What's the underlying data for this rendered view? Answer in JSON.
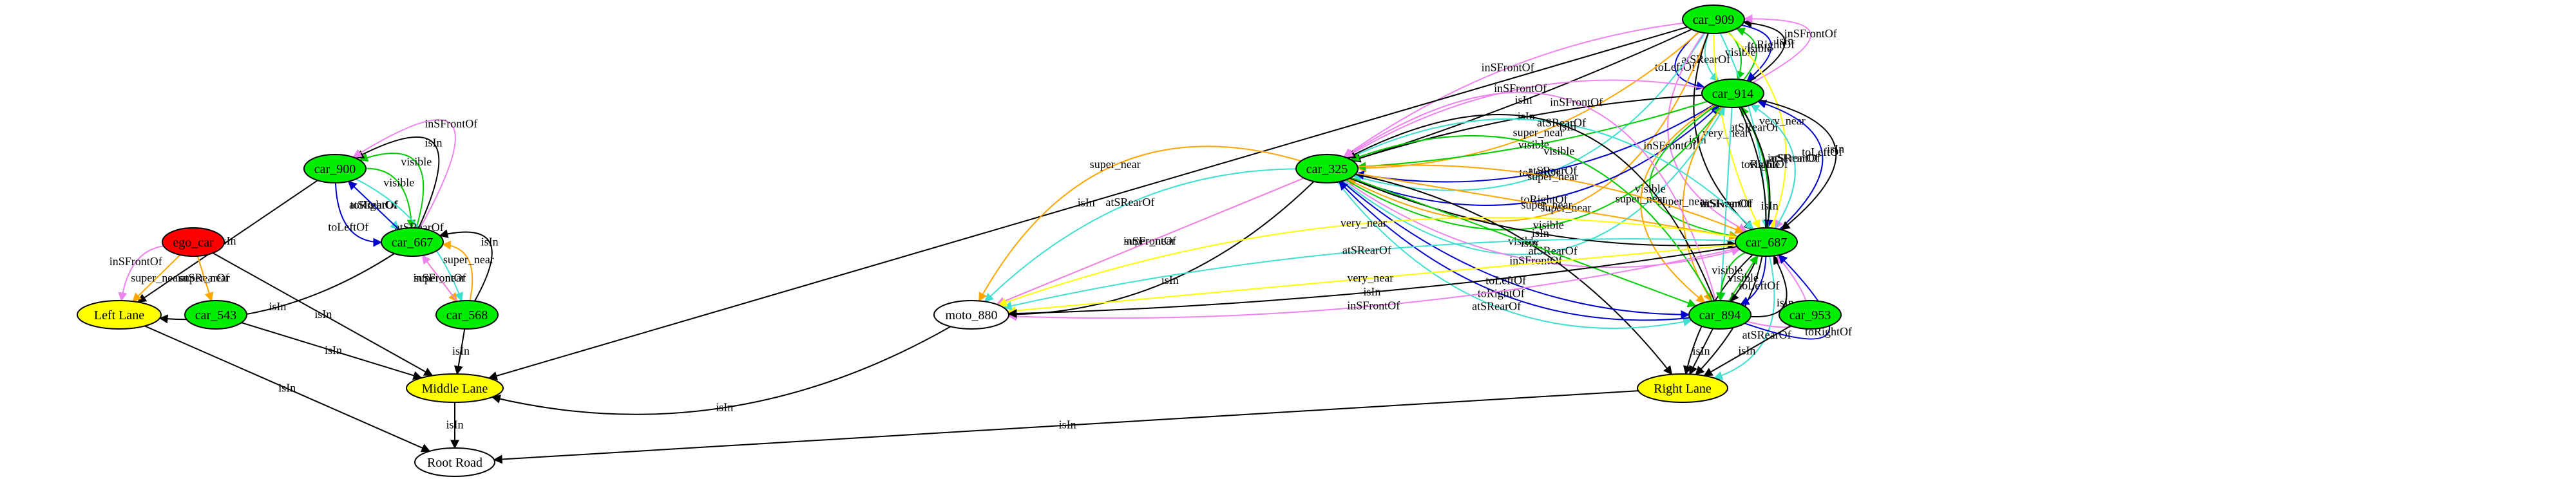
{
  "graph": {
    "nodes": [
      {
        "id": "car_909",
        "label": "car_909",
        "fill": "#00ee00"
      },
      {
        "id": "car_914",
        "label": "car_914",
        "fill": "#00ee00"
      },
      {
        "id": "car_325",
        "label": "car_325",
        "fill": "#00ee00"
      },
      {
        "id": "car_687",
        "label": "car_687",
        "fill": "#00ee00"
      },
      {
        "id": "car_900",
        "label": "car_900",
        "fill": "#00ee00"
      },
      {
        "id": "car_667",
        "label": "car_667",
        "fill": "#00ee00"
      },
      {
        "id": "ego_car",
        "label": "ego_car",
        "fill": "#ff0000"
      },
      {
        "id": "car_543",
        "label": "car_543",
        "fill": "#00ee00"
      },
      {
        "id": "car_568",
        "label": "car_568",
        "fill": "#00ee00"
      },
      {
        "id": "moto_880",
        "label": "moto_880",
        "fill": "#ffffff"
      },
      {
        "id": "car_894",
        "label": "car_894",
        "fill": "#00ee00"
      },
      {
        "id": "car_953",
        "label": "car_953",
        "fill": "#00ee00"
      },
      {
        "id": "left_lane",
        "label": "Left Lane",
        "fill": "#ffff00"
      },
      {
        "id": "middle_lane",
        "label": "Middle Lane",
        "fill": "#ffff00"
      },
      {
        "id": "right_lane",
        "label": "Right Lane",
        "fill": "#ffff00"
      },
      {
        "id": "root_road",
        "label": "Root Road",
        "fill": "#ffffff"
      }
    ],
    "edges": [
      {
        "from": "car_909",
        "to": "car_914",
        "label": "toRightOf",
        "color": "#0000cc"
      },
      {
        "from": "car_909",
        "to": "car_914",
        "label": "visible",
        "color": "#00cc00"
      },
      {
        "from": "car_909",
        "to": "car_914",
        "label": "atSRearOf",
        "color": "#40e0d0"
      },
      {
        "from": "car_909",
        "to": "car_914",
        "label": "toLeftOf",
        "color": "#0000cc"
      },
      {
        "from": "car_914",
        "to": "car_909",
        "label": "visible",
        "color": "#00cc00"
      },
      {
        "from": "car_914",
        "to": "car_909",
        "label": "isIn",
        "color": "#000000"
      },
      {
        "from": "car_914",
        "to": "car_909",
        "label": "inSFrontOf",
        "color": "#ee82ee"
      },
      {
        "from": "car_909",
        "to": "car_325",
        "label": "super_near",
        "color": "#ffa500"
      },
      {
        "from": "car_909",
        "to": "car_325",
        "label": "atSRearOf",
        "color": "#40e0d0"
      },
      {
        "from": "car_909",
        "to": "car_325",
        "label": "super_near",
        "color": "#ffa500"
      },
      {
        "from": "car_909",
        "to": "car_325",
        "label": "isIn",
        "color": "#000000"
      },
      {
        "from": "car_909",
        "to": "car_325",
        "label": "inSFrontOf",
        "color": "#ee82ee"
      },
      {
        "from": "car_909",
        "to": "middle_lane",
        "label": "isIn",
        "color": "#000000"
      },
      {
        "from": "car_909",
        "to": "car_687",
        "label": "very_near",
        "color": "#ffff00"
      },
      {
        "from": "car_909",
        "to": "car_687",
        "label": "atSRearOf",
        "color": "#40e0d0"
      },
      {
        "from": "car_909",
        "to": "car_687",
        "label": "very_near",
        "color": "#ffff00"
      },
      {
        "from": "car_909",
        "to": "car_687",
        "label": "isIn",
        "color": "#000000"
      },
      {
        "from": "car_909",
        "to": "car_687",
        "label": "inSFrontOf",
        "color": "#ee82ee"
      },
      {
        "from": "car_914",
        "to": "car_325",
        "label": "toLeftOf",
        "color": "#0000cc"
      },
      {
        "from": "car_914",
        "to": "car_325",
        "label": "visible",
        "color": "#00cc00"
      },
      {
        "from": "car_914",
        "to": "car_325",
        "label": "isIn",
        "color": "#000000"
      },
      {
        "from": "car_914",
        "to": "car_325",
        "label": "inSFrontOf",
        "color": "#ee82ee"
      },
      {
        "from": "car_325",
        "to": "car_914",
        "label": "toRightOf",
        "color": "#0000cc"
      },
      {
        "from": "car_325",
        "to": "car_914",
        "label": "visible",
        "color": "#00cc00"
      },
      {
        "from": "car_325",
        "to": "car_914",
        "label": "atSRearOf",
        "color": "#40e0d0"
      },
      {
        "from": "car_914",
        "to": "car_687",
        "label": "inSFrontOf",
        "color": "#ee82ee"
      },
      {
        "from": "car_914",
        "to": "car_687",
        "label": "toRightOf",
        "color": "#0000cc"
      },
      {
        "from": "car_687",
        "to": "car_914",
        "label": "visible",
        "color": "#00cc00"
      },
      {
        "from": "car_687",
        "to": "car_914",
        "label": "atSRearOf",
        "color": "#40e0d0"
      },
      {
        "from": "car_687",
        "to": "car_914",
        "label": "toLeftOf",
        "color": "#0000cc"
      },
      {
        "from": "car_914",
        "to": "car_687",
        "label": "visible",
        "color": "#00cc00"
      },
      {
        "from": "car_914",
        "to": "car_687",
        "label": "isIn",
        "color": "#000000"
      },
      {
        "from": "car_914",
        "to": "car_894",
        "label": "isIn",
        "color": "#000000"
      },
      {
        "from": "car_914",
        "to": "car_894",
        "label": "inSFrontOf",
        "color": "#ee82ee"
      },
      {
        "from": "car_914",
        "to": "car_894",
        "label": "super_near",
        "color": "#ffa500"
      },
      {
        "from": "car_914",
        "to": "car_894",
        "label": "super_near",
        "color": "#ffa500"
      },
      {
        "from": "car_914",
        "to": "car_894",
        "label": "atSRearOf",
        "color": "#40e0d0"
      },
      {
        "from": "car_914",
        "to": "right_lane",
        "label": "isIn",
        "color": "#000000"
      },
      {
        "from": "car_325",
        "to": "car_687",
        "label": "super_near",
        "color": "#ffa500"
      },
      {
        "from": "car_325",
        "to": "car_687",
        "label": "super_near",
        "color": "#ffa500"
      },
      {
        "from": "car_325",
        "to": "car_687",
        "label": "isIn",
        "color": "#000000"
      },
      {
        "from": "car_325",
        "to": "car_687",
        "label": "inSFrontOf",
        "color": "#ee82ee"
      },
      {
        "from": "car_325",
        "to": "car_687",
        "label": "atSRearOf",
        "color": "#40e0d0"
      },
      {
        "from": "car_325",
        "to": "moto_880",
        "label": "isIn",
        "color": "#000000"
      },
      {
        "from": "car_325",
        "to": "moto_880",
        "label": "super_near",
        "color": "#ffa500"
      },
      {
        "from": "car_325",
        "to": "moto_880",
        "label": "atSRearOf",
        "color": "#40e0d0"
      },
      {
        "from": "car_325",
        "to": "moto_880",
        "label": "super_near",
        "color": "#ffa500"
      },
      {
        "from": "car_325",
        "to": "moto_880",
        "label": "inSFrontOf",
        "color": "#ee82ee"
      },
      {
        "from": "car_325",
        "to": "right_lane",
        "label": "isIn",
        "color": "#000000"
      },
      {
        "from": "car_325",
        "to": "car_894",
        "label": "visible",
        "color": "#00cc00"
      },
      {
        "from": "car_325",
        "to": "car_894",
        "label": "toLeftOf",
        "color": "#0000cc"
      },
      {
        "from": "car_325",
        "to": "car_894",
        "label": "atSRearOf",
        "color": "#40e0d0"
      },
      {
        "from": "car_894",
        "to": "car_325",
        "label": "visible",
        "color": "#00cc00"
      },
      {
        "from": "car_894",
        "to": "car_325",
        "label": "isIn",
        "color": "#000000"
      },
      {
        "from": "car_894",
        "to": "car_325",
        "label": "inSFrontOf",
        "color": "#ee82ee"
      },
      {
        "from": "car_894",
        "to": "car_325",
        "label": "toRightOf",
        "color": "#0000cc"
      },
      {
        "from": "car_687",
        "to": "moto_880",
        "label": "inSFrontOf",
        "color": "#ee82ee"
      },
      {
        "from": "car_687",
        "to": "moto_880",
        "label": "very_near",
        "color": "#ffff00"
      },
      {
        "from": "car_687",
        "to": "moto_880",
        "label": "atSRearOf",
        "color": "#40e0d0"
      },
      {
        "from": "car_687",
        "to": "moto_880",
        "label": "very_near",
        "color": "#ffff00"
      },
      {
        "from": "car_687",
        "to": "moto_880",
        "label": "isIn",
        "color": "#000000"
      },
      {
        "from": "car_687",
        "to": "right_lane",
        "label": "isIn",
        "color": "#000000"
      },
      {
        "from": "car_687",
        "to": "right_lane",
        "label": "atSRearOf",
        "color": "#40e0d0"
      },
      {
        "from": "car_687",
        "to": "car_894",
        "label": "toLeftOf",
        "color": "#0000cc"
      },
      {
        "from": "car_687",
        "to": "car_894",
        "label": "visible",
        "color": "#00cc00"
      },
      {
        "from": "car_894",
        "to": "car_687",
        "label": "isIn",
        "color": "#000000"
      },
      {
        "from": "car_894",
        "to": "car_687",
        "label": "inSFrontOf",
        "color": "#ee82ee"
      },
      {
        "from": "car_894",
        "to": "car_687",
        "label": "toRightOf",
        "color": "#0000cc"
      },
      {
        "from": "car_894",
        "to": "car_687",
        "label": "visible",
        "color": "#00cc00"
      },
      {
        "from": "car_894",
        "to": "right_lane",
        "label": "isIn",
        "color": "#000000"
      },
      {
        "from": "car_953",
        "to": "right_lane",
        "label": "isIn",
        "color": "#000000"
      },
      {
        "from": "moto_880",
        "to": "middle_lane",
        "label": "isIn",
        "color": "#000000"
      },
      {
        "from": "car_900",
        "to": "car_667",
        "label": "visible",
        "color": "#00cc00"
      },
      {
        "from": "car_900",
        "to": "car_667",
        "label": "atSRearOf",
        "color": "#40e0d0"
      },
      {
        "from": "car_900",
        "to": "car_667",
        "label": "toLeftOf",
        "color": "#0000cc"
      },
      {
        "from": "car_667",
        "to": "car_900",
        "label": "visible",
        "color": "#00cc00"
      },
      {
        "from": "car_667",
        "to": "car_900",
        "label": "isIn",
        "color": "#000000"
      },
      {
        "from": "car_667",
        "to": "car_900",
        "label": "inSFrontOf",
        "color": "#ee82ee"
      },
      {
        "from": "car_667",
        "to": "car_900",
        "label": "toRightOf",
        "color": "#0000cc"
      },
      {
        "from": "car_900",
        "to": "left_lane",
        "label": "isIn",
        "color": "#000000"
      },
      {
        "from": "car_900",
        "to": "car_568",
        "label": "atSRearOf",
        "color": "#40e0d0"
      },
      {
        "from": "ego_car",
        "to": "left_lane",
        "label": "inSFrontOf",
        "color": "#ee82ee"
      },
      {
        "from": "ego_car",
        "to": "left_lane",
        "label": "super_near",
        "color": "#ffa500"
      },
      {
        "from": "ego_car",
        "to": "car_543",
        "label": "atSRearOf",
        "color": "#40e0d0"
      },
      {
        "from": "ego_car",
        "to": "car_543",
        "label": "super_near",
        "color": "#ffa500"
      },
      {
        "from": "ego_car",
        "to": "middle_lane",
        "label": "isIn",
        "color": "#000000"
      },
      {
        "from": "car_667",
        "to": "left_lane",
        "label": "isIn",
        "color": "#000000"
      },
      {
        "from": "car_667",
        "to": "car_568",
        "label": "super_near",
        "color": "#ffa500"
      },
      {
        "from": "car_568",
        "to": "car_667",
        "label": "super_near",
        "color": "#ffa500"
      },
      {
        "from": "car_568",
        "to": "car_667",
        "label": "isIn",
        "color": "#000000"
      },
      {
        "from": "car_568",
        "to": "car_667",
        "label": "inSFrontOf",
        "color": "#ee82ee"
      },
      {
        "from": "car_568",
        "to": "middle_lane",
        "label": "isIn",
        "color": "#000000"
      },
      {
        "from": "car_543",
        "to": "middle_lane",
        "label": "isIn",
        "color": "#000000"
      },
      {
        "from": "left_lane",
        "to": "root_road",
        "label": "isIn",
        "color": "#000000"
      },
      {
        "from": "middle_lane",
        "to": "root_road",
        "label": "isIn",
        "color": "#000000"
      },
      {
        "from": "right_lane",
        "to": "root_road",
        "label": "isIn",
        "color": "#000000"
      }
    ]
  }
}
